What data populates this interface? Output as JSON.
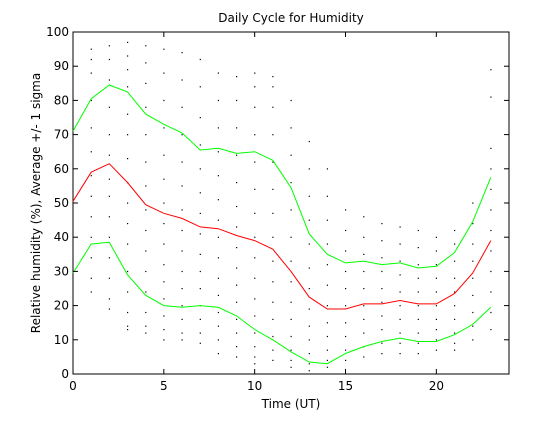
{
  "chart_data": {
    "type": "line",
    "title": "Daily Cycle for Humidity",
    "xlabel": "Time (UT)",
    "ylabel": "Relative humidity (%), Average +/- 1 sigma",
    "xlim": [
      0,
      24
    ],
    "ylim": [
      0,
      100
    ],
    "xticks": [
      0,
      5,
      10,
      15,
      20
    ],
    "yticks": [
      0,
      10,
      20,
      30,
      40,
      50,
      60,
      70,
      80,
      90,
      100
    ],
    "grid": false,
    "legend": "none",
    "x": [
      0,
      1,
      2,
      3,
      4,
      5,
      6,
      7,
      8,
      9,
      10,
      11,
      12,
      13,
      14,
      15,
      16,
      17,
      18,
      19,
      20,
      21,
      22,
      23
    ],
    "series": [
      {
        "role": "plus-1-sigma",
        "color": "#00ff00",
        "values": [
          71,
          80.5,
          84.5,
          82.5,
          76,
          73,
          70.5,
          65.5,
          66,
          64.5,
          65,
          62.5,
          54.5,
          41,
          35,
          32.5,
          33,
          32,
          32.5,
          31,
          31.5,
          35.5,
          44.5,
          57.5
        ]
      },
      {
        "role": "average",
        "color": "#ff0000",
        "values": [
          50.5,
          59,
          61.5,
          56,
          49.5,
          47,
          45.5,
          43,
          42.5,
          40.5,
          39,
          36.5,
          30,
          22.5,
          19,
          19,
          20.5,
          20.5,
          21.5,
          20.5,
          20.5,
          23.5,
          29.5,
          39
        ]
      },
      {
        "role": "minus-1-sigma",
        "color": "#00ff00",
        "values": [
          29.5,
          38,
          38.5,
          29,
          23,
          20,
          19.5,
          20,
          19.5,
          17,
          13,
          10,
          6.5,
          3.5,
          3,
          6,
          8,
          9.5,
          10.5,
          9.5,
          9.5,
          11.5,
          14.5,
          19.5
        ]
      }
    ],
    "scatter": {
      "color": "#000000",
      "points": [
        [
          1,
          95
        ],
        [
          1,
          92
        ],
        [
          1,
          88
        ],
        [
          1,
          80
        ],
        [
          1,
          72
        ],
        [
          1,
          65
        ],
        [
          1,
          58
        ],
        [
          1,
          52
        ],
        [
          1,
          46
        ],
        [
          1,
          40
        ],
        [
          1,
          34
        ],
        [
          1,
          28
        ],
        [
          1,
          24
        ],
        [
          2,
          96
        ],
        [
          2,
          92
        ],
        [
          2,
          86
        ],
        [
          2,
          78
        ],
        [
          2,
          70
        ],
        [
          2,
          64
        ],
        [
          2,
          57
        ],
        [
          2,
          52
        ],
        [
          2,
          46
        ],
        [
          2,
          40
        ],
        [
          2,
          34
        ],
        [
          2,
          28
        ],
        [
          2,
          22
        ],
        [
          2,
          19
        ],
        [
          3,
          97
        ],
        [
          3,
          93
        ],
        [
          3,
          89
        ],
        [
          3,
          84
        ],
        [
          3,
          76
        ],
        [
          3,
          70
        ],
        [
          3,
          63
        ],
        [
          3,
          56
        ],
        [
          3,
          50
        ],
        [
          3,
          44
        ],
        [
          3,
          38
        ],
        [
          3,
          30
        ],
        [
          3,
          24
        ],
        [
          3,
          18
        ],
        [
          3,
          14
        ],
        [
          3,
          13
        ],
        [
          4,
          96
        ],
        [
          4,
          91
        ],
        [
          4,
          85
        ],
        [
          4,
          78
        ],
        [
          4,
          70
        ],
        [
          4,
          62
        ],
        [
          4,
          55
        ],
        [
          4,
          48
        ],
        [
          4,
          42
        ],
        [
          4,
          36
        ],
        [
          4,
          30
        ],
        [
          4,
          24
        ],
        [
          4,
          18
        ],
        [
          4,
          14
        ],
        [
          4,
          12
        ],
        [
          5,
          95
        ],
        [
          5,
          88
        ],
        [
          5,
          80
        ],
        [
          5,
          72
        ],
        [
          5,
          64
        ],
        [
          5,
          57
        ],
        [
          5,
          50
        ],
        [
          5,
          44
        ],
        [
          5,
          38
        ],
        [
          5,
          32
        ],
        [
          5,
          27
        ],
        [
          5,
          22
        ],
        [
          5,
          17
        ],
        [
          5,
          13
        ],
        [
          5,
          10
        ],
        [
          6,
          94
        ],
        [
          6,
          86
        ],
        [
          6,
          78
        ],
        [
          6,
          70
        ],
        [
          6,
          62
        ],
        [
          6,
          55
        ],
        [
          6,
          48
        ],
        [
          6,
          42
        ],
        [
          6,
          36
        ],
        [
          6,
          30
        ],
        [
          6,
          25
        ],
        [
          6,
          20
        ],
        [
          6,
          16
        ],
        [
          6,
          12
        ],
        [
          6,
          10
        ],
        [
          7,
          92
        ],
        [
          7,
          84
        ],
        [
          7,
          75
        ],
        [
          7,
          67
        ],
        [
          7,
          60
        ],
        [
          7,
          53
        ],
        [
          7,
          47
        ],
        [
          7,
          41
        ],
        [
          7,
          35
        ],
        [
          7,
          30
        ],
        [
          7,
          25
        ],
        [
          7,
          20
        ],
        [
          7,
          16
        ],
        [
          7,
          12
        ],
        [
          7,
          9
        ],
        [
          8,
          88
        ],
        [
          8,
          80
        ],
        [
          8,
          72
        ],
        [
          8,
          65
        ],
        [
          8,
          58
        ],
        [
          8,
          51
        ],
        [
          8,
          45
        ],
        [
          8,
          40
        ],
        [
          8,
          34
        ],
        [
          8,
          28
        ],
        [
          8,
          23
        ],
        [
          8,
          18
        ],
        [
          8,
          14
        ],
        [
          8,
          10
        ],
        [
          8,
          6
        ],
        [
          9,
          87
        ],
        [
          9,
          80
        ],
        [
          9,
          72
        ],
        [
          9,
          64
        ],
        [
          9,
          56
        ],
        [
          9,
          49
        ],
        [
          9,
          43
        ],
        [
          9,
          37
        ],
        [
          9,
          31
        ],
        [
          9,
          26
        ],
        [
          9,
          21
        ],
        [
          9,
          16
        ],
        [
          9,
          12
        ],
        [
          9,
          8
        ],
        [
          9,
          5
        ],
        [
          10,
          88
        ],
        [
          10,
          84
        ],
        [
          10,
          78
        ],
        [
          10,
          70
        ],
        [
          10,
          62
        ],
        [
          10,
          54
        ],
        [
          10,
          47
        ],
        [
          10,
          40
        ],
        [
          10,
          34
        ],
        [
          10,
          28
        ],
        [
          10,
          22
        ],
        [
          10,
          17
        ],
        [
          10,
          12
        ],
        [
          10,
          8
        ],
        [
          10,
          5
        ],
        [
          10,
          3
        ],
        [
          11,
          87
        ],
        [
          11,
          84
        ],
        [
          11,
          78
        ],
        [
          11,
          70
        ],
        [
          11,
          62
        ],
        [
          11,
          54
        ],
        [
          11,
          47
        ],
        [
          11,
          40
        ],
        [
          11,
          33
        ],
        [
          11,
          27
        ],
        [
          11,
          21
        ],
        [
          11,
          16
        ],
        [
          11,
          11
        ],
        [
          11,
          7
        ],
        [
          11,
          4
        ],
        [
          12,
          80
        ],
        [
          12,
          72
        ],
        [
          12,
          64
        ],
        [
          12,
          56
        ],
        [
          12,
          48
        ],
        [
          12,
          40
        ],
        [
          12,
          33
        ],
        [
          12,
          27
        ],
        [
          12,
          21
        ],
        [
          12,
          16
        ],
        [
          12,
          11
        ],
        [
          12,
          7
        ],
        [
          12,
          4
        ],
        [
          12,
          2
        ],
        [
          13,
          68
        ],
        [
          13,
          60
        ],
        [
          13,
          52
        ],
        [
          13,
          45
        ],
        [
          13,
          38
        ],
        [
          13,
          31
        ],
        [
          13,
          25
        ],
        [
          13,
          19
        ],
        [
          13,
          14
        ],
        [
          13,
          10
        ],
        [
          13,
          6
        ],
        [
          13,
          3
        ],
        [
          13,
          1
        ],
        [
          14,
          60
        ],
        [
          14,
          52
        ],
        [
          14,
          45
        ],
        [
          14,
          38
        ],
        [
          14,
          32
        ],
        [
          14,
          26
        ],
        [
          14,
          20
        ],
        [
          14,
          15
        ],
        [
          14,
          11
        ],
        [
          14,
          7
        ],
        [
          14,
          4
        ],
        [
          14,
          2
        ],
        [
          15,
          48
        ],
        [
          15,
          42
        ],
        [
          15,
          36
        ],
        [
          15,
          30
        ],
        [
          15,
          25
        ],
        [
          15,
          20
        ],
        [
          15,
          15
        ],
        [
          15,
          11
        ],
        [
          15,
          7
        ],
        [
          15,
          4
        ],
        [
          16,
          46
        ],
        [
          16,
          40
        ],
        [
          16,
          35
        ],
        [
          16,
          30
        ],
        [
          16,
          25
        ],
        [
          16,
          20
        ],
        [
          16,
          16
        ],
        [
          16,
          12
        ],
        [
          16,
          8
        ],
        [
          16,
          5
        ],
        [
          17,
          44
        ],
        [
          17,
          39
        ],
        [
          17,
          34
        ],
        [
          17,
          30
        ],
        [
          17,
          25
        ],
        [
          17,
          21
        ],
        [
          17,
          17
        ],
        [
          17,
          13
        ],
        [
          17,
          9
        ],
        [
          17,
          6
        ],
        [
          18,
          43
        ],
        [
          18,
          38
        ],
        [
          18,
          33
        ],
        [
          18,
          29
        ],
        [
          18,
          24
        ],
        [
          18,
          20
        ],
        [
          18,
          16
        ],
        [
          18,
          12
        ],
        [
          18,
          9
        ],
        [
          18,
          6
        ],
        [
          19,
          42
        ],
        [
          19,
          37
        ],
        [
          19,
          32
        ],
        [
          19,
          28
        ],
        [
          19,
          24
        ],
        [
          19,
          20
        ],
        [
          19,
          16
        ],
        [
          19,
          12
        ],
        [
          19,
          9
        ],
        [
          19,
          6
        ],
        [
          20,
          40
        ],
        [
          20,
          36
        ],
        [
          20,
          32
        ],
        [
          20,
          28
        ],
        [
          20,
          24
        ],
        [
          20,
          20
        ],
        [
          20,
          16
        ],
        [
          20,
          13
        ],
        [
          20,
          10
        ],
        [
          20,
          7
        ],
        [
          21,
          42
        ],
        [
          21,
          38
        ],
        [
          21,
          33
        ],
        [
          21,
          28
        ],
        [
          21,
          24
        ],
        [
          21,
          20
        ],
        [
          21,
          16
        ],
        [
          21,
          12
        ],
        [
          21,
          9
        ],
        [
          21,
          7
        ],
        [
          22,
          50
        ],
        [
          22,
          44
        ],
        [
          22,
          38
        ],
        [
          22,
          33
        ],
        [
          22,
          28
        ],
        [
          22,
          23
        ],
        [
          22,
          18
        ],
        [
          22,
          14
        ],
        [
          22,
          10
        ],
        [
          23,
          89
        ],
        [
          23,
          81
        ],
        [
          23,
          66
        ],
        [
          23,
          60
        ],
        [
          23,
          54
        ],
        [
          23,
          48
        ],
        [
          23,
          42
        ],
        [
          23,
          36
        ],
        [
          23,
          30
        ],
        [
          23,
          24
        ],
        [
          23,
          18
        ],
        [
          23,
          13
        ]
      ]
    }
  }
}
